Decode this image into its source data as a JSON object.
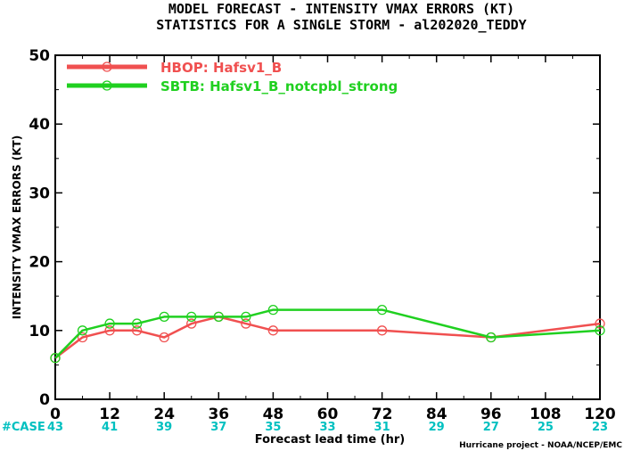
{
  "chart_data": {
    "type": "line",
    "title": "MODEL FORECAST - INTENSITY VMAX ERRORS (KT)",
    "subtitle": "STATISTICS FOR A SINGLE STORM - al202020_TEDDY",
    "xlabel": "Forecast lead time (hr)",
    "ylabel": "INTENSITY VMAX ERRORS (KT)",
    "xlim": [
      0,
      120
    ],
    "ylim": [
      0,
      50
    ],
    "xticks": [
      "0",
      "12",
      "24",
      "36",
      "48",
      "60",
      "72",
      "84",
      "96",
      "108",
      "120"
    ],
    "yticks": [
      "0",
      "10",
      "20",
      "30",
      "40",
      "50"
    ],
    "grid": false,
    "legend_position": "top-left",
    "series": [
      {
        "name": "HBOP: Hafsv1_B",
        "color": "#f05050",
        "x": [
          0,
          6,
          12,
          18,
          24,
          30,
          36,
          42,
          48,
          72,
          96,
          120
        ],
        "y": [
          6,
          9,
          10,
          10,
          9,
          11,
          12,
          11,
          10,
          10,
          9,
          11
        ]
      },
      {
        "name": "SBTB: Hafsv1_B_notcpbl_strong",
        "color": "#20d020",
        "x": [
          0,
          6,
          12,
          18,
          24,
          30,
          36,
          42,
          48,
          72,
          96,
          120
        ],
        "y": [
          6,
          10,
          11,
          11,
          12,
          12,
          12,
          12,
          13,
          13,
          9,
          10
        ]
      }
    ],
    "case_label": "#CASE",
    "case_color": "#00c0c0",
    "case_counts": [
      "43",
      "41",
      "39",
      "37",
      "35",
      "33",
      "31",
      "29",
      "27",
      "25",
      "23"
    ],
    "credit": "Hurricane project - NOAA/NCEP/EMC"
  }
}
